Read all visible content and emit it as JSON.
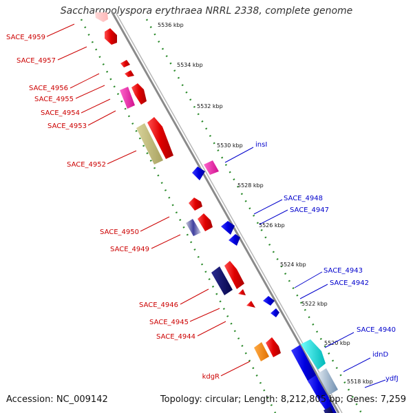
{
  "title": "Saccharopolyspora erythraea NRRL 2338, complete genome",
  "accession": "Accession: NC_009142",
  "topology": "Topology: circular; Length: 8,212,805 bp; Genes: 7,259",
  "colors": {
    "backbone": "#8a8a8a",
    "ticks": "#2b8a2b",
    "left_label": "#cc0000",
    "right_label": "#0000cc"
  },
  "kbp_ticks": [
    "5536 kbp",
    "5534 kbp",
    "5532 kbp",
    "5530 kbp",
    "5528 kbp",
    "5526 kbp",
    "5524 kbp",
    "5522 kbp",
    "5520 kbp",
    "5518 kbp"
  ],
  "left_labels": [
    "SACE_4959",
    "SACE_4957",
    "SACE_4956",
    "SACE_4955",
    "SACE_4954",
    "SACE_4953",
    "SACE_4952",
    "SACE_4950",
    "SACE_4949",
    "SACE_4946",
    "SACE_4945",
    "SACE_4944",
    "kdgR"
  ],
  "right_labels": [
    "insI",
    "SACE_4948",
    "SACE_4947",
    "SACE_4943",
    "SACE_4942",
    "SACE_4940",
    "idnD",
    "ydfJ"
  ]
}
